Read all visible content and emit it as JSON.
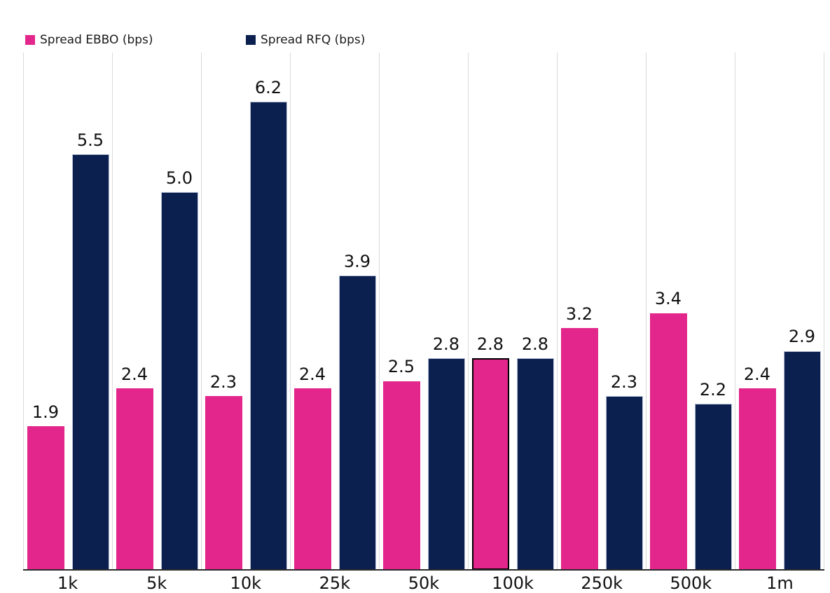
{
  "chart_data": {
    "type": "bar",
    "title": "",
    "xlabel": "",
    "ylabel": "",
    "categories": [
      "1k",
      "5k",
      "10k",
      "25k",
      "50k",
      "100k",
      "250k",
      "500k",
      "1m"
    ],
    "series": [
      {
        "name": "Spread EBBO (bps)",
        "color": "#e2268b",
        "values": [
          1.9,
          2.4,
          2.3,
          2.4,
          2.5,
          2.8,
          3.2,
          3.4,
          2.4
        ],
        "labels": [
          "1.9",
          "2.4",
          "2.3",
          "2.4",
          "2.5",
          "2.8",
          "3.2",
          "3.4",
          "2.4"
        ]
      },
      {
        "name": "Spread RFQ (bps)",
        "color": "#0c2050",
        "values": [
          5.5,
          5.0,
          6.2,
          3.9,
          2.8,
          2.8,
          2.3,
          2.2,
          2.9
        ],
        "labels": [
          "5.5",
          "5.0",
          "6.2",
          "3.9",
          "2.8",
          "2.8",
          "2.3",
          "2.2",
          "2.9"
        ]
      }
    ],
    "ylim": [
      0,
      6.85
    ],
    "grid": "vertical-only",
    "legend_position": "top-left",
    "highlight": {
      "category": "100k",
      "series": "Spread EBBO (bps)"
    }
  },
  "colors": {
    "background": "#ffffff",
    "gridline": "#d9d9d9",
    "axis_line": "#2b2b2b",
    "value_label": "#111111",
    "highlight_border": "#000000"
  }
}
